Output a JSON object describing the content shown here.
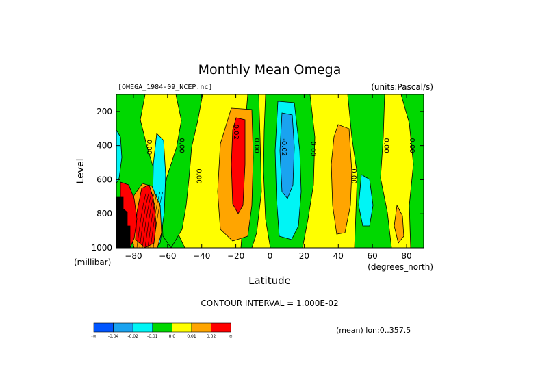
{
  "chart_data": {
    "type": "heatmap",
    "title": "Monthly Mean Omega",
    "subtitle_left": "[OMEGA_1984-09_NCEP.nc]",
    "subtitle_right": "(units:Pascal/s)",
    "xlabel": "Latitude",
    "xunit": "(degrees_north)",
    "ylabel": "Level",
    "yunit": "(millibar)",
    "xlim": [
      -90,
      90
    ],
    "ylim": [
      1000,
      100
    ],
    "x_ticks": [
      -80,
      -60,
      -40,
      -20,
      0,
      20,
      40,
      60,
      80
    ],
    "y_ticks": [
      200,
      400,
      600,
      800,
      1000
    ],
    "contour_interval_label": "CONTOUR INTERVAL = 1.000E-02",
    "mean_label": "(mean) lon:0..357.5",
    "contour_labels": [
      {
        "text": "0.00",
        "x": -72,
        "y": 410
      },
      {
        "text": "0.00",
        "x": -53,
        "y": 400
      },
      {
        "text": "0.00",
        "x": -43,
        "y": 580
      },
      {
        "text": "0.02",
        "x": -21,
        "y": 320
      },
      {
        "text": "0.00",
        "x": -9,
        "y": 400
      },
      {
        "text": "-0.02",
        "x": 7,
        "y": 410
      },
      {
        "text": "0.00",
        "x": 24,
        "y": 420
      },
      {
        "text": "0.00",
        "x": 48,
        "y": 580
      },
      {
        "text": "0.00",
        "x": 67,
        "y": 400
      },
      {
        "text": "0.00",
        "x": 82,
        "y": 400
      }
    ],
    "legend": {
      "colors": [
        "#0055ff",
        "#1aa3f0",
        "#00f5f5",
        "#00d800",
        "#ffff00",
        "#ffa500",
        "#ff0000"
      ],
      "labels": [
        "-∞",
        "-0.04",
        "-0.02",
        "-0.01",
        "0.0",
        "0.01",
        "0.02",
        "∞"
      ]
    }
  },
  "colors": {
    "neg3": "#0055ff",
    "neg2": "#1aa3f0",
    "neg1": "#00f5f5",
    "zero_neg": "#00d800",
    "zero_pos": "#ffff00",
    "pos1": "#ffa500",
    "pos2": "#ff0000",
    "missing": "#000000"
  }
}
